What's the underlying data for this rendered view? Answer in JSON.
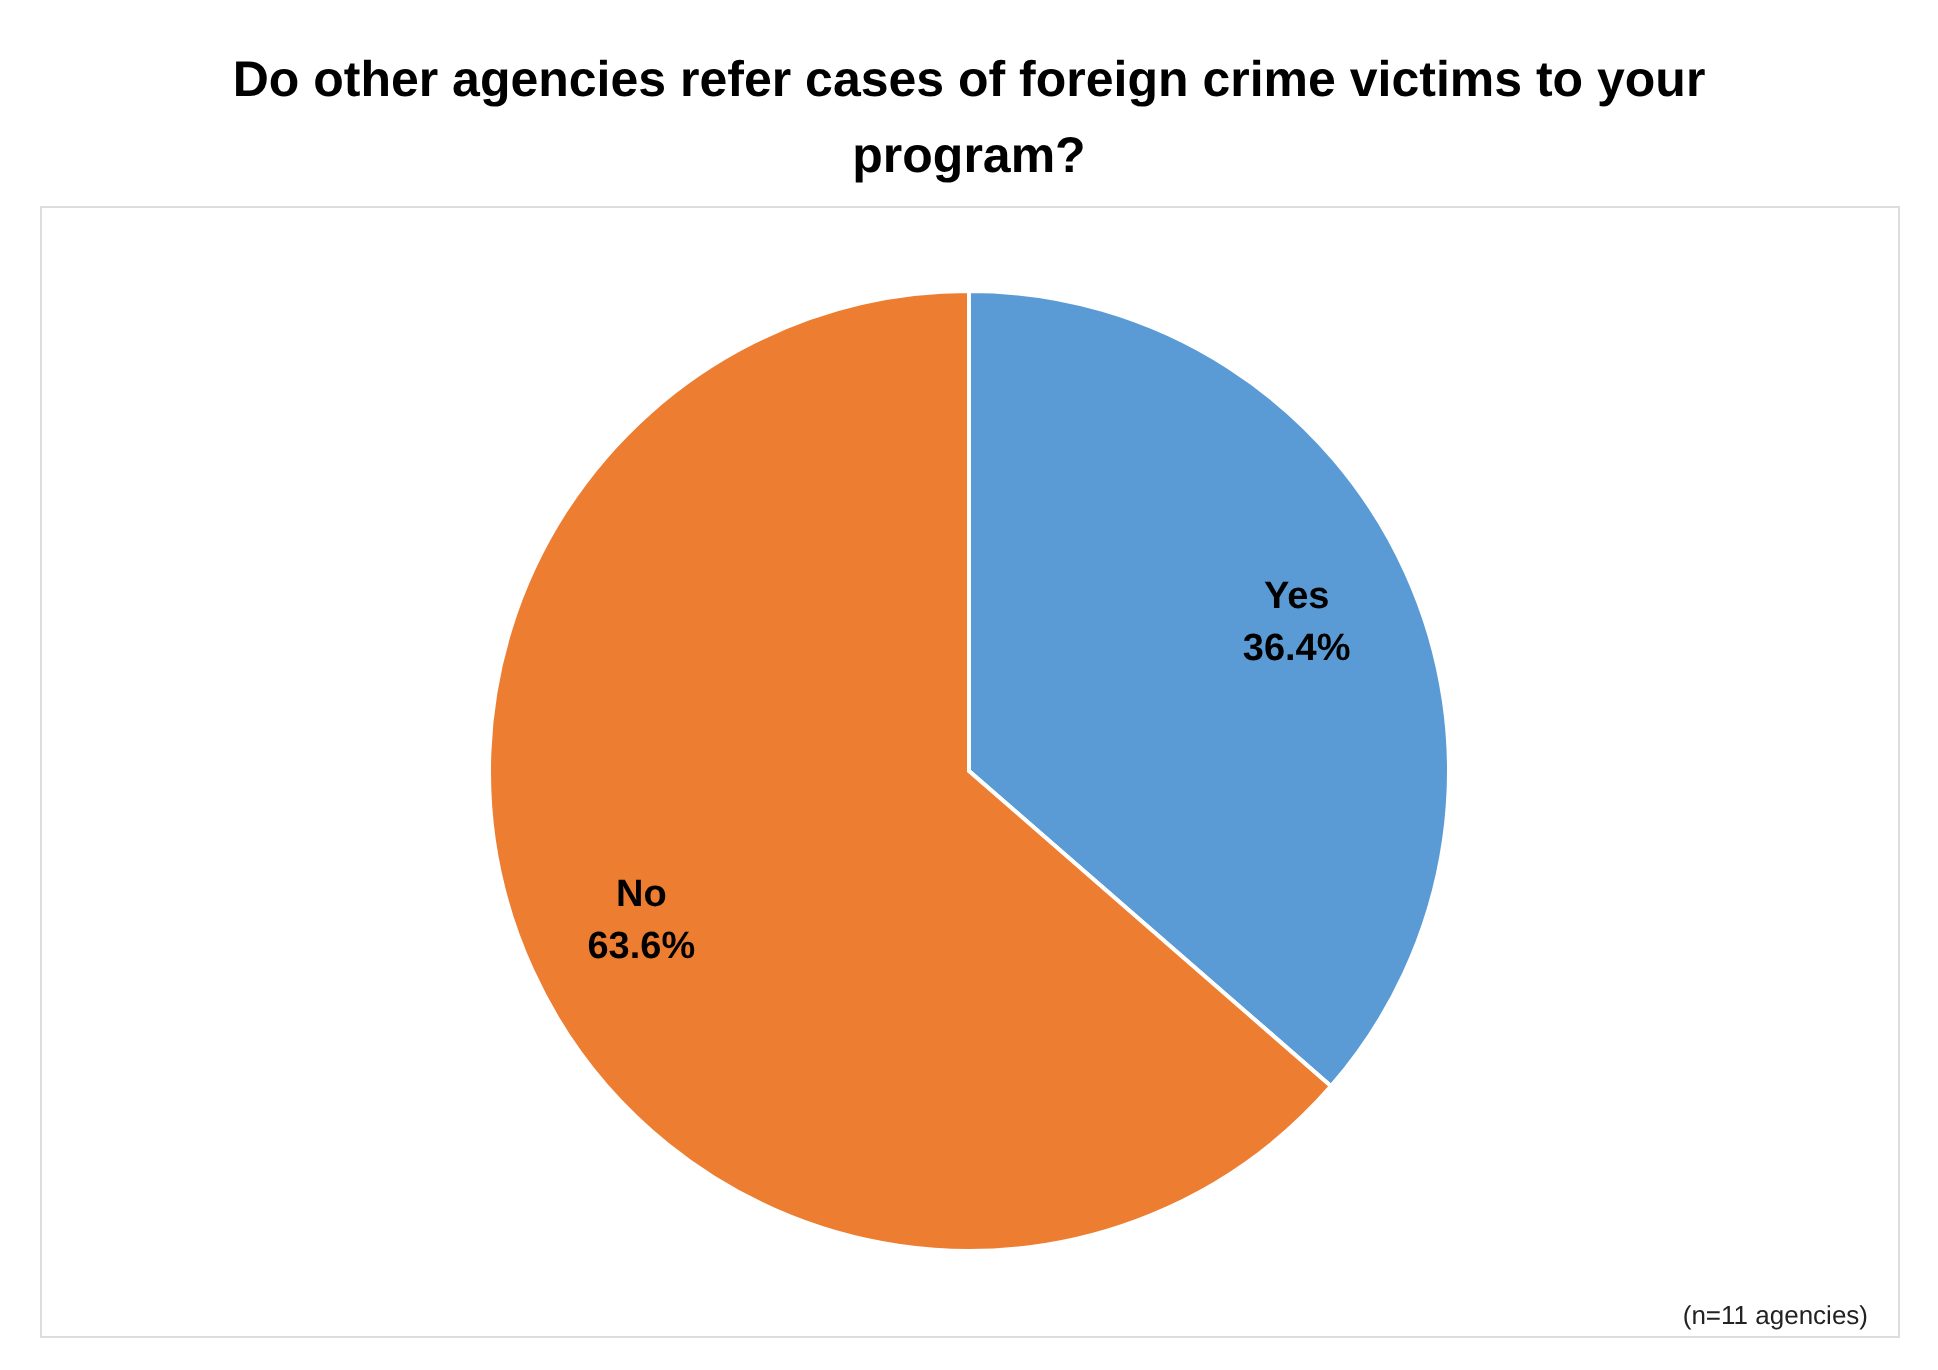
{
  "chart_data": {
    "type": "pie",
    "title": "Do other agencies refer cases of foreign crime victims to your program?",
    "categories": [
      "Yes",
      "No"
    ],
    "values": [
      36.4,
      63.6
    ],
    "colors": [
      "#5b9bd5",
      "#ed7d31"
    ],
    "value_labels": [
      "36.4%",
      "63.6%"
    ],
    "legend": false,
    "annotations": [
      "(n=11 agencies)"
    ]
  }
}
